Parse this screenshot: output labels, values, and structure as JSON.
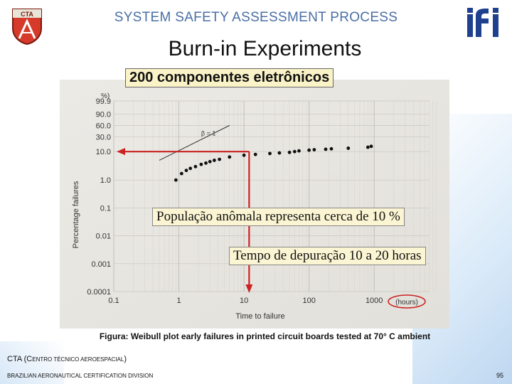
{
  "header": {
    "title": "SYSTEM SAFETY ASSESSMENT PROCESS",
    "cta_logo_text": "CTA",
    "ifi_logo_text": "ifi"
  },
  "slide": {
    "title": "Burn-in Experiments",
    "subtitle": "200 componentes eletrônicos"
  },
  "callouts": {
    "anomalous_population": "População anômala representa cerca de 10 %",
    "debug_time": "Tempo de depuração 10 a 20 horas"
  },
  "caption": "Figura: Weibull plot early failures in printed circuit boards tested at 70° C ambient",
  "footer": {
    "org_prefix": "CTA (C",
    "org_p1": "ENTRO ",
    "org_t": "T",
    "org_p2": "ÉCNICO ",
    "org_a": "A",
    "org_p3": "EROESPACIAL",
    "org_suffix": ")",
    "division_b": "B",
    "division_p1": "RAZILIAN ",
    "division_a": "A",
    "division_p2": "ERONAUTICAL ",
    "division_c": "C",
    "division_p3": "ERTIFICATION ",
    "division_d": "D",
    "division_p4": "IVISION",
    "page_number": "95"
  },
  "chart_data": {
    "type": "scatter",
    "x_scale": "log",
    "y_scale": "weibull",
    "xlabel": "Time to failure",
    "ylabel": "Percentage failures",
    "x_unit_label": "(hours)",
    "y_unit_label": "%)",
    "x_ticks": [
      "0.1",
      "1",
      "10",
      "100",
      "1000"
    ],
    "y_ticks": [
      "99.9",
      "90.0",
      "60.0",
      "30.0",
      "10.0",
      "1.0",
      "0.1",
      "0.01",
      "0.001",
      "0.0001"
    ],
    "y_tick_values": [
      99.9,
      90.0,
      60.0,
      30.0,
      10.0,
      1.0,
      0.1,
      0.01,
      0.001,
      0.0001
    ],
    "beta_label": "β = 1",
    "beta_line": [
      [
        0.5,
        5.0
      ],
      [
        6.0,
        60.0
      ]
    ],
    "series": [
      {
        "points": [
          {
            "x": 0.9,
            "y": 1.0
          },
          {
            "x": 1.1,
            "y": 1.7
          },
          {
            "x": 1.3,
            "y": 2.2
          },
          {
            "x": 1.5,
            "y": 2.6
          },
          {
            "x": 1.8,
            "y": 3.0
          },
          {
            "x": 2.2,
            "y": 3.6
          },
          {
            "x": 2.6,
            "y": 4.0
          },
          {
            "x": 3.0,
            "y": 4.5
          },
          {
            "x": 3.5,
            "y": 5.0
          },
          {
            "x": 4.2,
            "y": 5.4
          },
          {
            "x": 6.0,
            "y": 6.5
          },
          {
            "x": 10.0,
            "y": 7.5
          },
          {
            "x": 15.0,
            "y": 8.0
          },
          {
            "x": 25.0,
            "y": 8.6
          },
          {
            "x": 35.0,
            "y": 9.0
          },
          {
            "x": 50.0,
            "y": 9.4
          },
          {
            "x": 60.0,
            "y": 10.0
          },
          {
            "x": 70.0,
            "y": 10.6
          },
          {
            "x": 100.0,
            "y": 11.2
          },
          {
            "x": 120.0,
            "y": 11.6
          },
          {
            "x": 180.0,
            "y": 12.0
          },
          {
            "x": 220.0,
            "y": 12.4
          },
          {
            "x": 400.0,
            "y": 13.0
          },
          {
            "x": 800.0,
            "y": 14.0
          },
          {
            "x": 900.0,
            "y": 15.0
          }
        ]
      }
    ],
    "annotations": {
      "horizontal_arrow_y_percent": 10.0,
      "vertical_line_x_hours": 12.0
    },
    "colors": {
      "arrow": "#cc2222",
      "callout_bg": "#fbf5d3",
      "header_text": "#4a6fa5",
      "hours_ellipse": "#cc2222"
    }
  }
}
